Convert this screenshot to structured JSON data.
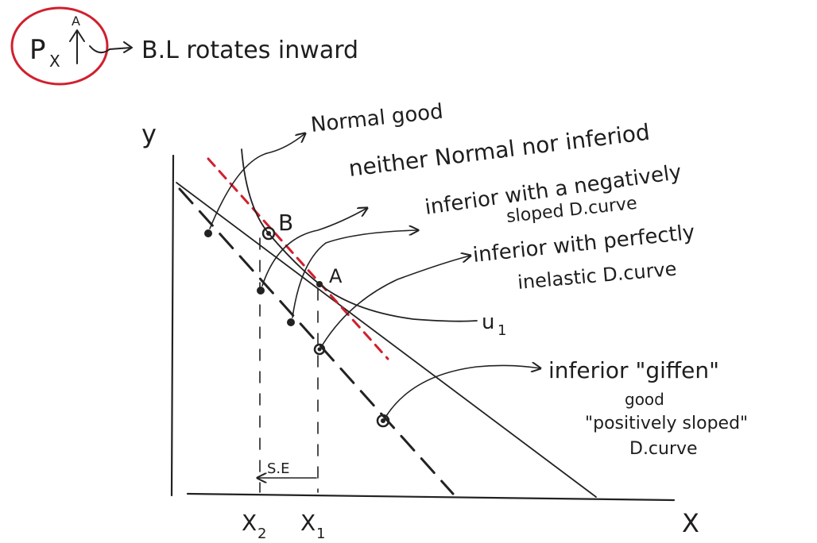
{
  "header": {
    "price": "P",
    "price_sub": "X",
    "increase_mark": "A",
    "statement": "B.L rotates inward"
  },
  "axes": {
    "y_label": "y",
    "x_label": "X",
    "x2": "X",
    "x2_sub": "2",
    "x1": "X",
    "x1_sub": "1"
  },
  "points": {
    "b": "B",
    "a": "A",
    "utility": "u",
    "utility_sub": "1"
  },
  "annotations": {
    "normal": "Normal good",
    "neither": "neither Normal nor inferiod",
    "inferior_neg_1": "inferior with a negatively",
    "inferior_neg_2": "sloped D.curve",
    "inferior_inel_1": "inferior with perfectly",
    "inferior_inel_2": "inelastic D.curve",
    "giffen_1": "inferior \"giffen\"",
    "giffen_2": "good",
    "giffen_3": "\"positively sloped\"",
    "giffen_4": "D.curve",
    "substitution": "S.E"
  },
  "colors": {
    "ink": "#222222",
    "highlight": "#d0202e"
  }
}
